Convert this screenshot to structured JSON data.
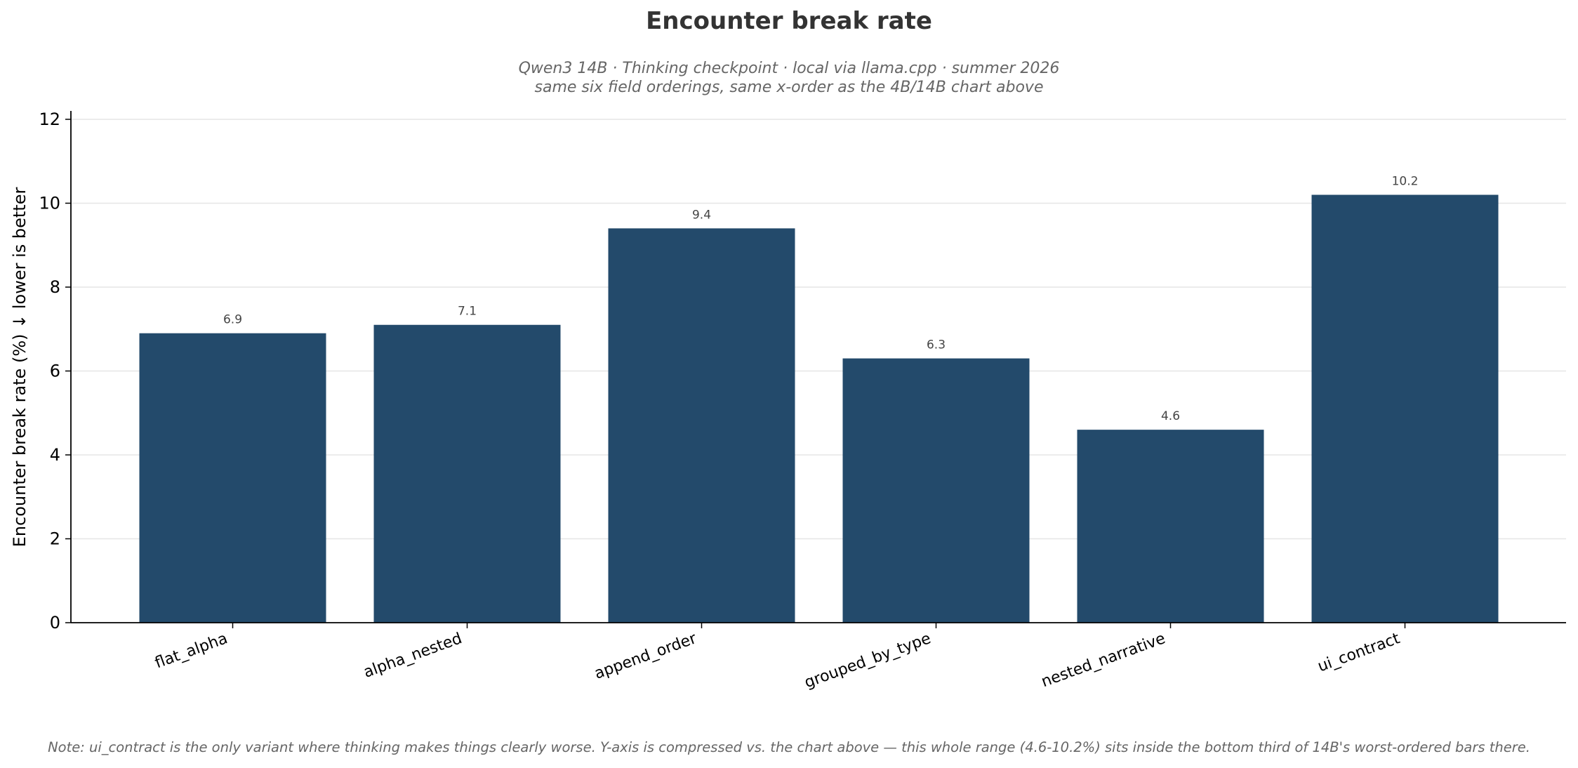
{
  "chart_data": {
    "type": "bar",
    "title": "Encounter break rate",
    "subtitle": [
      "Qwen3 14B  ·  Thinking checkpoint  ·  local via llama.cpp  ·  summer 2026",
      "same six field orderings, same x-order as the 4B/14B chart above"
    ],
    "xlabel": "",
    "ylabel": "Encounter break rate (%)  ↓ lower is better",
    "categories": [
      "flat_alpha",
      "alpha_nested",
      "append_order",
      "grouped_by_type",
      "nested_narrative",
      "ui_contract"
    ],
    "values": [
      6.9,
      7.1,
      9.4,
      6.3,
      4.6,
      10.2
    ],
    "value_labels": [
      "6.9",
      "7.1",
      "9.4",
      "6.3",
      "4.6",
      "10.2"
    ],
    "ylim": [
      0,
      12.2
    ],
    "yticks": [
      0,
      2,
      4,
      6,
      8,
      10,
      12
    ],
    "grid": "horizontal",
    "colors": {
      "bar": "#234a6b",
      "grid": "#e6e6e6",
      "axis": "#000000"
    },
    "note": "Note: ui_contract is the only variant where thinking makes things clearly worse. Y-axis is compressed vs. the chart above — this whole range (4.6-10.2%) sits inside the bottom third of 14B's worst-ordered bars there."
  }
}
